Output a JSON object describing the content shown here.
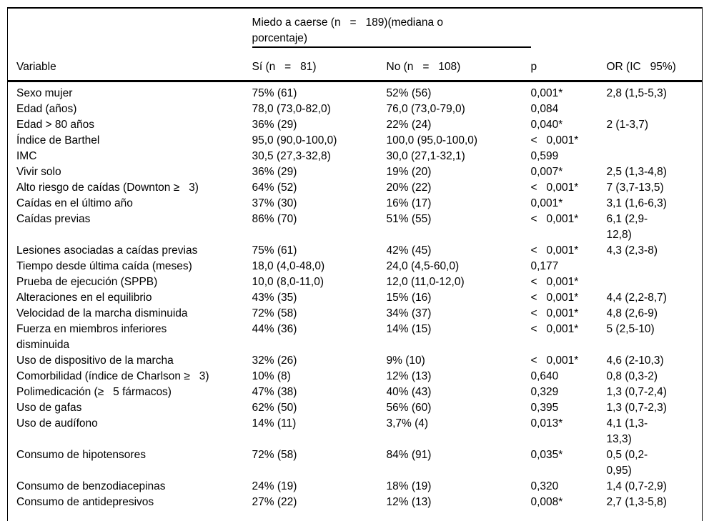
{
  "table": {
    "span_header": "Miedo a caerse (n   =   189)(mediana o\nporcentaje)",
    "columns": {
      "variable": "Variable",
      "si": "Sí (n   =   81)",
      "no": "No (n   =   108)",
      "p": "p",
      "or": "OR (IC   95%)"
    },
    "rows": [
      {
        "variable": "Sexo mujer",
        "si": "75% (61)",
        "no": "52% (56)",
        "p": "0,001*",
        "or": "2,8 (1,5-5,3)"
      },
      {
        "variable": "Edad (años)",
        "si": "78,0 (73,0-82,0)",
        "no": "76,0 (73,0-79,0)",
        "p": "0,084",
        "or": ""
      },
      {
        "variable": "Edad > 80 años",
        "si": "36% (29)",
        "no": "22% (24)",
        "p": "0,040*",
        "or": "2 (1-3,7)"
      },
      {
        "variable": "Índice de Barthel",
        "si": "95,0 (90,0-100,0)",
        "no": "100,0 (95,0-100,0)",
        "p": "<   0,001*",
        "or": ""
      },
      {
        "variable": "IMC",
        "si": "30,5 (27,3-32,8)",
        "no": "30,0 (27,1-32,1)",
        "p": "0,599",
        "or": ""
      },
      {
        "variable": "Vivir solo",
        "si": "36% (29)",
        "no": "19% (20)",
        "p": "0,007*",
        "or": "2,5 (1,3-4,8)"
      },
      {
        "variable": "Alto riesgo de caídas (Downton ≥   3)",
        "si": "64% (52)",
        "no": "20% (22)",
        "p": "<   0,001*",
        "or": "7 (3,7-13,5)"
      },
      {
        "variable": "Caídas en el último año",
        "si": "37% (30)",
        "no": "16% (17)",
        "p": "0,001*",
        "or": "3,1 (1,6-6,3)"
      },
      {
        "variable": "Caídas previas",
        "si": "86% (70)",
        "no": "51% (55)",
        "p": "<   0,001*",
        "or": "6,1 (2,9-\n12,8)"
      },
      {
        "variable": "Lesiones asociadas a caídas previas",
        "si": "75% (61)",
        "no": "42% (45)",
        "p": "<   0,001*",
        "or": "4,3 (2,3-8)"
      },
      {
        "variable": "Tiempo desde última caída (meses)",
        "si": "18,0 (4,0-48,0)",
        "no": "24,0 (4,5-60,0)",
        "p": "0,177",
        "or": ""
      },
      {
        "variable": "Prueba de ejecución (SPPB)",
        "si": "10,0 (8,0-11,0)",
        "no": "12,0 (11,0-12,0)",
        "p": "<   0,001*",
        "or": ""
      },
      {
        "variable": "Alteraciones en el equilibrio",
        "si": "43% (35)",
        "no": "15% (16)",
        "p": "<   0,001*",
        "or": "4,4 (2,2-8,7)"
      },
      {
        "variable": "Velocidad de la marcha disminuida",
        "si": "72% (58)",
        "no": "34% (37)",
        "p": "<   0,001*",
        "or": "4,8 (2,6-9)"
      },
      {
        "variable": "Fuerza en miembros inferiores\ndisminuida",
        "si": "44% (36)",
        "no": "14% (15)",
        "p": "<   0,001*",
        "or": "5 (2,5-10)"
      },
      {
        "variable": "Uso de dispositivo de la marcha",
        "si": "32% (26)",
        "no": "9% (10)",
        "p": "<   0,001*",
        "or": "4,6 (2-10,3)"
      },
      {
        "variable": "Comorbilidad (índice de Charlson ≥   3)",
        "si": "10% (8)",
        "no": "12% (13)",
        "p": "0,640",
        "or": "0,8 (0,3-2)"
      },
      {
        "variable": "Polimedicación (≥   5 fármacos)",
        "si": "47% (38)",
        "no": "40% (43)",
        "p": "0,329",
        "or": "1,3 (0,7-2,4)"
      },
      {
        "variable": "Uso de gafas",
        "si": "62% (50)",
        "no": "56% (60)",
        "p": "0,395",
        "or": "1,3 (0,7-2,3)"
      },
      {
        "variable": "Uso de audífono",
        "si": "14% (11)",
        "no": "3,7% (4)",
        "p": "0,013*",
        "or": "4,1 (1,3-\n13,3)"
      },
      {
        "variable": "Consumo de hipotensores",
        "si": "72% (58)",
        "no": "84% (91)",
        "p": "0,035*",
        "or": "0,5 (0,2-\n0,95)"
      },
      {
        "variable": "Consumo de benzodiacepinas",
        "si": "24% (19)",
        "no": "18% (19)",
        "p": "0,320",
        "or": "1,4 (0,7-2,9)"
      },
      {
        "variable": "Consumo de antidepresivos",
        "si": "27% (22)",
        "no": "12% (13)",
        "p": "0,008*",
        "or": "2,7 (1,3-5,8)"
      }
    ]
  }
}
